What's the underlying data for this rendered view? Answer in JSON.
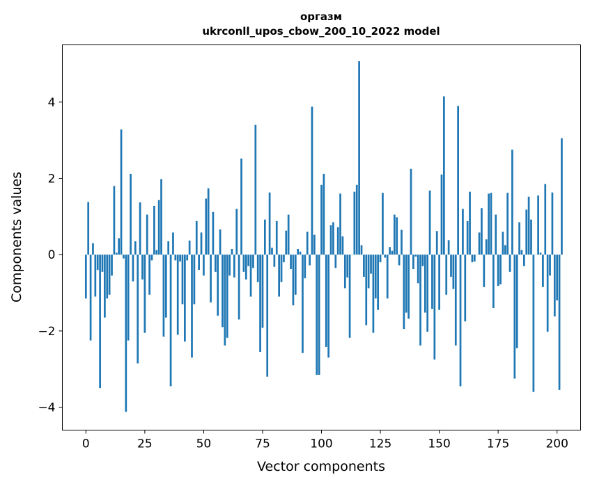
{
  "chart_data": {
    "type": "bar",
    "title": "оргазм",
    "subtitle": "ukrconll_upos_cbow_200_10_2022 model",
    "xlabel": "Vector components",
    "ylabel": "Components values",
    "xlim": [
      -10,
      210
    ],
    "ylim": [
      -4.6,
      5.5
    ],
    "xticks": [
      0,
      25,
      50,
      75,
      100,
      125,
      150,
      175,
      200
    ],
    "yticks": [
      -4,
      -2,
      0,
      2,
      4
    ],
    "xtick_labels": [
      "0",
      "25",
      "50",
      "75",
      "100",
      "125",
      "150",
      "175",
      "200"
    ],
    "ytick_labels": [
      "−4",
      "−2",
      "0",
      "2",
      "4"
    ],
    "grid": false,
    "series_color": "#1f77b4",
    "values": [
      -1.15,
      1.38,
      -2.25,
      0.3,
      -1.1,
      -0.4,
      -3.5,
      -0.45,
      -1.65,
      -1.15,
      -1.05,
      -0.55,
      1.8,
      0.05,
      0.43,
      3.28,
      -0.1,
      -4.12,
      -2.25,
      2.12,
      -0.7,
      0.35,
      -2.85,
      1.37,
      -0.65,
      -2.05,
      1.05,
      -1.05,
      -0.15,
      1.28,
      0.12,
      1.43,
      1.98,
      -2.15,
      -1.65,
      0.35,
      -3.45,
      0.58,
      -0.15,
      -2.1,
      -0.18,
      -1.3,
      -2.28,
      -0.15,
      0.37,
      -2.7,
      -1.3,
      0.88,
      -0.4,
      0.58,
      -0.55,
      1.47,
      1.74,
      -1.25,
      1.12,
      -0.45,
      -1.6,
      0.66,
      -1.9,
      -2.38,
      -2.18,
      -0.55,
      0.15,
      -0.6,
      1.2,
      -1.7,
      2.52,
      -0.45,
      -0.65,
      -0.3,
      -1.1,
      -0.35,
      3.4,
      -0.72,
      -2.55,
      -1.92,
      0.92,
      -3.2,
      1.63,
      0.18,
      -0.32,
      0.88,
      -1.1,
      -0.72,
      -0.2,
      0.63,
      1.05,
      -0.38,
      -1.33,
      -1.05,
      0.15,
      0.08,
      -2.58,
      -0.62,
      0.6,
      -0.28,
      3.88,
      0.52,
      -3.15,
      -3.15,
      1.83,
      2.12,
      -2.42,
      -2.7,
      0.77,
      0.85,
      -0.35,
      0.72,
      1.6,
      0.48,
      -0.88,
      -0.6,
      -2.18,
      0.0,
      1.65,
      1.83,
      5.07,
      0.25,
      -0.58,
      -1.85,
      -0.88,
      -0.5,
      -2.05,
      -1.15,
      -1.45,
      -0.2,
      1.62,
      -0.08,
      -1.15,
      0.2,
      0.1,
      1.05,
      0.98,
      -0.28,
      0.65,
      -1.95,
      -1.52,
      -1.68,
      2.25,
      -0.38,
      -0.05,
      -0.75,
      -2.38,
      -0.3,
      -1.52,
      -2.02,
      1.68,
      -1.42,
      -2.75,
      0.62,
      -1.45,
      2.1,
      4.15,
      -1.05,
      0.38,
      -0.58,
      -0.9,
      -2.38,
      3.9,
      -3.45,
      1.2,
      -1.75,
      0.88,
      1.65,
      -0.2,
      -0.18,
      0.0,
      0.58,
      1.22,
      -0.85,
      0.4,
      1.6,
      1.62,
      -1.4,
      1.05,
      -0.82,
      -0.78,
      0.6,
      0.25,
      1.62,
      -0.45,
      2.75,
      -3.25,
      -2.45,
      0.85,
      0.12,
      -0.3,
      1.18,
      1.52,
      0.92,
      -3.6,
      0.0,
      1.55,
      0.05,
      -0.85,
      1.85,
      -2.02,
      -0.55,
      1.63,
      -1.62,
      -1.2,
      -3.55,
      3.05
    ]
  }
}
